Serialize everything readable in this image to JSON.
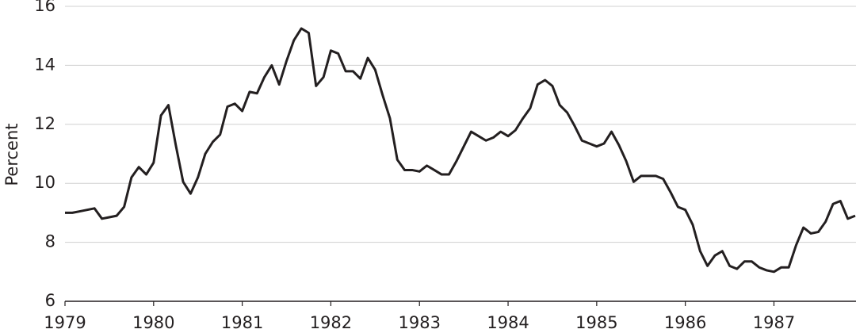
{
  "chart_data": {
    "type": "line",
    "y_label": "Percent",
    "x": [
      1979,
      1979.083,
      1979.167,
      1979.25,
      1979.333,
      1979.417,
      1979.5,
      1979.583,
      1979.667,
      1979.75,
      1979.833,
      1979.917,
      1980,
      1980.083,
      1980.167,
      1980.25,
      1980.333,
      1980.417,
      1980.5,
      1980.583,
      1980.667,
      1980.75,
      1980.833,
      1980.917,
      1981,
      1981.083,
      1981.167,
      1981.25,
      1981.333,
      1981.417,
      1981.5,
      1981.583,
      1981.667,
      1981.75,
      1981.833,
      1981.917,
      1982,
      1982.083,
      1982.167,
      1982.25,
      1982.333,
      1982.417,
      1982.5,
      1982.583,
      1982.667,
      1982.75,
      1982.833,
      1982.917,
      1983,
      1983.083,
      1983.167,
      1983.25,
      1983.333,
      1983.417,
      1983.5,
      1983.583,
      1983.667,
      1983.75,
      1983.833,
      1983.917,
      1984,
      1984.083,
      1984.167,
      1984.25,
      1984.333,
      1984.417,
      1984.5,
      1984.583,
      1984.667,
      1984.75,
      1984.833,
      1984.917,
      1985,
      1985.083,
      1985.167,
      1985.25,
      1985.333,
      1985.417,
      1985.5,
      1985.583,
      1985.667,
      1985.75,
      1985.833,
      1985.917,
      1986,
      1986.083,
      1986.167,
      1986.25,
      1986.333,
      1986.417,
      1986.5,
      1986.583,
      1986.667,
      1986.75,
      1986.833,
      1986.917,
      1987,
      1987.083,
      1987.167,
      1987.25,
      1987.333,
      1987.417,
      1987.5,
      1987.583,
      1987.667,
      1987.75,
      1987.833,
      1987.917
    ],
    "series": [
      {
        "color": "#231f20",
        "values": [
          9.0,
          9.0,
          9.05,
          9.1,
          9.15,
          8.8,
          8.85,
          8.9,
          9.2,
          10.2,
          10.55,
          10.3,
          10.7,
          12.3,
          12.65,
          11.3,
          10.05,
          9.65,
          10.2,
          11.0,
          11.4,
          11.65,
          12.6,
          12.7,
          12.45,
          13.1,
          13.05,
          13.6,
          14.0,
          13.35,
          14.15,
          14.85,
          15.25,
          15.1,
          13.3,
          13.6,
          14.5,
          14.4,
          13.8,
          13.8,
          13.55,
          14.25,
          13.85,
          13.0,
          12.2,
          10.8,
          10.45,
          10.45,
          10.4,
          10.6,
          10.45,
          10.3,
          10.3,
          10.75,
          11.25,
          11.75,
          11.6,
          11.45,
          11.55,
          11.75,
          11.6,
          11.8,
          12.2,
          12.55,
          13.35,
          13.5,
          13.3,
          12.65,
          12.4,
          11.95,
          11.45,
          11.35,
          11.25,
          11.35,
          11.75,
          11.3,
          10.75,
          10.05,
          10.25,
          10.25,
          10.25,
          10.15,
          9.7,
          9.2,
          9.1,
          8.6,
          7.7,
          7.2,
          7.55,
          7.7,
          7.2,
          7.1,
          7.35,
          7.35,
          7.15,
          7.05,
          7.0,
          7.15,
          7.15,
          7.9,
          8.5,
          8.3,
          8.35,
          8.7,
          9.3,
          9.4,
          8.8,
          8.9
        ]
      }
    ],
    "xlim": [
      1979,
      1987.917
    ],
    "xticks": [
      1979,
      1980,
      1981,
      1982,
      1983,
      1984,
      1985,
      1986,
      1987
    ],
    "ylim": [
      6,
      16
    ],
    "yticks": [
      6,
      8,
      10,
      12,
      14,
      16
    ],
    "grid": true
  }
}
